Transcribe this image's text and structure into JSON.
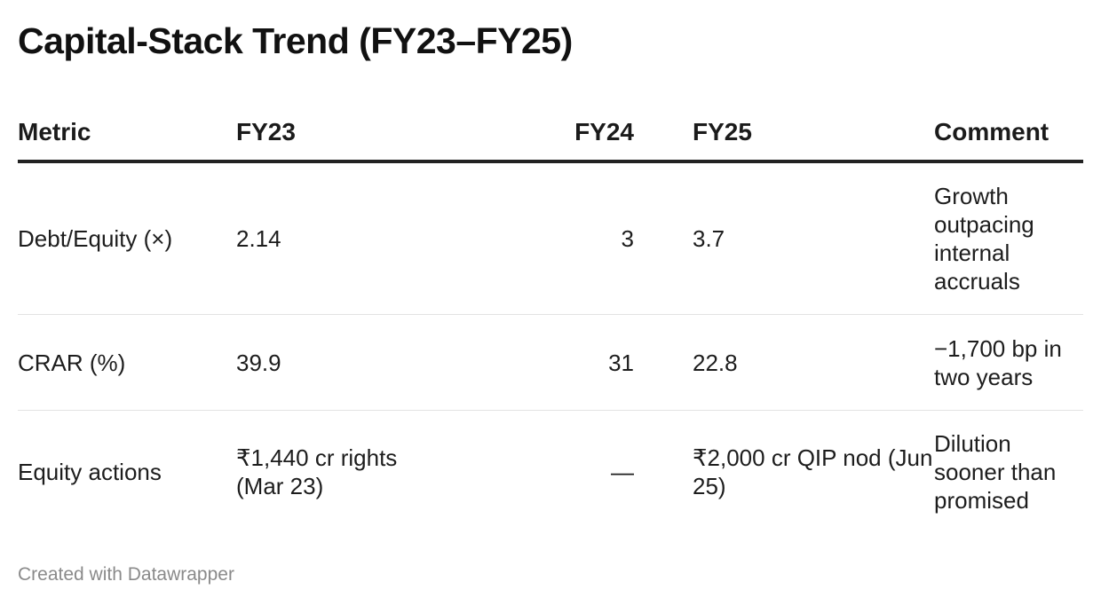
{
  "chart_data": {
    "type": "table",
    "title": "Capital-Stack Trend (FY23–FY25)",
    "columns": [
      "Metric",
      "FY23",
      "FY24",
      "FY25",
      "Comment"
    ],
    "rows": [
      {
        "metric": "Debt/Equity (×)",
        "fy23": "2.14",
        "fy24": "3",
        "fy25": "3.7",
        "comment": "Growth outpacing internal accruals"
      },
      {
        "metric": "CRAR (%)",
        "fy23": "39.9",
        "fy24": "31",
        "fy25": "22.8",
        "comment": "−1,700 bp in two years"
      },
      {
        "metric": "Equity actions",
        "fy23": "₹1,440 cr rights (Mar 23)",
        "fy24": "—",
        "fy25": "₹2,000 cr QIP nod (Jun 25)",
        "comment": "Dilution sooner than promised"
      }
    ]
  },
  "footer": "Created with Datawrapper"
}
